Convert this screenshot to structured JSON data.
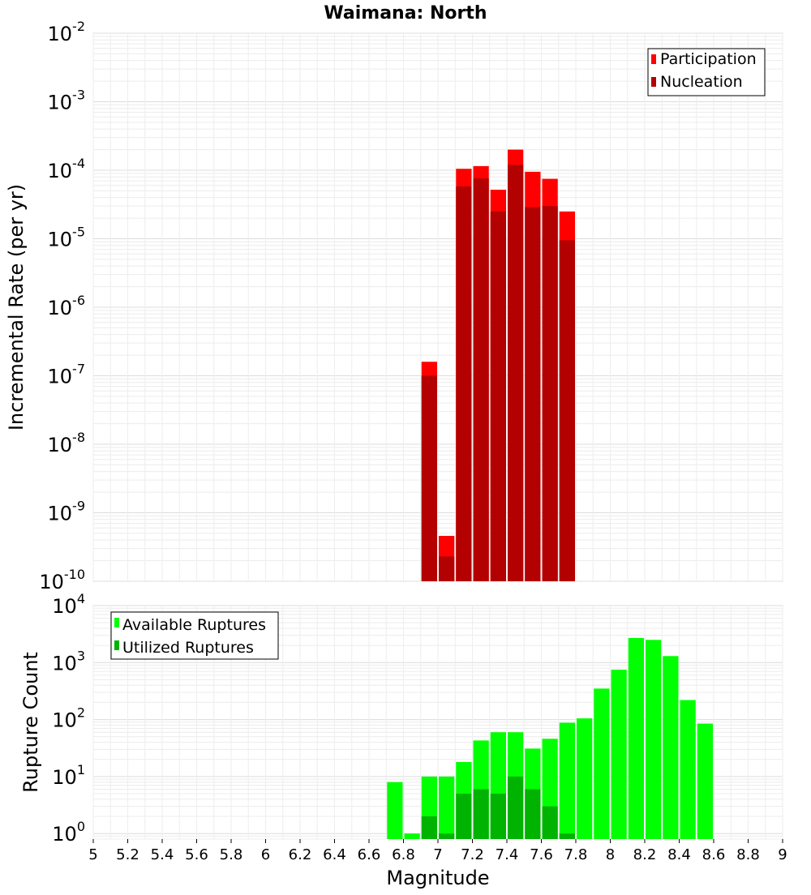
{
  "chart_data": [
    {
      "type": "bar",
      "title": "Waimana: North",
      "xlabel": "Magnitude",
      "ylabel": "Incremental Rate (per yr)",
      "yscale": "log",
      "xlim": [
        5,
        9
      ],
      "ylim": [
        1e-10,
        0.01
      ],
      "grid": true,
      "legend_position": "top-right",
      "bar_width": 0.1,
      "ytick_labels": [
        {
          "value": 0.01,
          "base": "10",
          "exp": "-2"
        },
        {
          "value": 0.001,
          "base": "10",
          "exp": "-3"
        },
        {
          "value": 0.0001,
          "base": "10",
          "exp": "-4"
        },
        {
          "value": 1e-05,
          "base": "10",
          "exp": "-5"
        },
        {
          "value": 1e-06,
          "base": "10",
          "exp": "-6"
        },
        {
          "value": 1e-07,
          "base": "10",
          "exp": "-7"
        },
        {
          "value": 1e-08,
          "base": "10",
          "exp": "-8"
        },
        {
          "value": 1e-09,
          "base": "10",
          "exp": "-9"
        },
        {
          "value": 1e-10,
          "base": "10",
          "exp": "-10"
        }
      ],
      "series": [
        {
          "name": "Participation",
          "color": "#ff0000",
          "x": [
            6.95,
            7.05,
            7.15,
            7.25,
            7.35,
            7.45,
            7.55,
            7.65,
            7.75
          ],
          "values": [
            1.6e-07,
            4.6e-10,
            0.000105,
            0.000115,
            5.2e-05,
            0.0002,
            9.5e-05,
            7.5e-05,
            2.5e-05
          ]
        },
        {
          "name": "Nucleation",
          "color": "#b30000",
          "x": [
            6.95,
            7.05,
            7.15,
            7.25,
            7.35,
            7.45,
            7.55,
            7.65,
            7.75
          ],
          "values": [
            1e-07,
            2.3e-10,
            5.8e-05,
            7.6e-05,
            2.5e-05,
            0.00012,
            2.9e-05,
            3e-05,
            9.5e-06
          ]
        }
      ]
    },
    {
      "type": "bar",
      "xlabel": "Magnitude",
      "ylabel": "Rupture Count",
      "yscale": "log",
      "xlim": [
        5,
        9
      ],
      "ylim": [
        0.8,
        10000.0
      ],
      "grid": true,
      "legend_position": "top-left",
      "bar_width": 0.1,
      "xtick_labels": [
        "5",
        "5.2",
        "5.4",
        "5.6",
        "5.8",
        "6",
        "6.2",
        "6.4",
        "6.6",
        "6.8",
        "7",
        "7.2",
        "7.4",
        "7.6",
        "7.8",
        "8",
        "8.2",
        "8.4",
        "8.6",
        "8.8",
        "9"
      ],
      "ytick_labels": [
        {
          "value": 10000.0,
          "base": "10",
          "exp": "4"
        },
        {
          "value": 1000.0,
          "base": "10",
          "exp": "3"
        },
        {
          "value": 100.0,
          "base": "10",
          "exp": "2"
        },
        {
          "value": 10.0,
          "base": "10",
          "exp": "1"
        },
        {
          "value": 1,
          "base": "10",
          "exp": "0"
        }
      ],
      "series": [
        {
          "name": "Available Ruptures",
          "color": "#00ff00",
          "x": [
            6.75,
            6.85,
            6.95,
            7.05,
            7.15,
            7.25,
            7.35,
            7.45,
            7.55,
            7.65,
            7.75,
            7.85,
            7.95,
            8.05,
            8.15,
            8.25,
            8.35,
            8.45,
            8.55
          ],
          "values": [
            8,
            1,
            10,
            10,
            18,
            43,
            60,
            60,
            31,
            46,
            88,
            105,
            350,
            750,
            2700,
            2500,
            1300,
            220,
            85
          ]
        },
        {
          "name": "Utilized Ruptures",
          "color": "#00b300",
          "x": [
            6.95,
            7.05,
            7.15,
            7.25,
            7.35,
            7.45,
            7.55,
            7.65,
            7.75
          ],
          "values": [
            2,
            1,
            5,
            6,
            5,
            10,
            6,
            3,
            1
          ]
        }
      ]
    }
  ]
}
